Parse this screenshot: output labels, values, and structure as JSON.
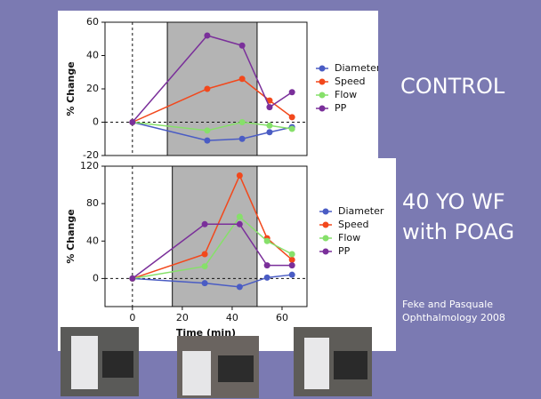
{
  "chart_data": [
    {
      "type": "line",
      "y_label": "% Change",
      "x": [
        0,
        30,
        44,
        55,
        64
      ],
      "xlim": [
        -11,
        70
      ],
      "ylim": [
        -20,
        60
      ],
      "yticks": [
        -20,
        0,
        20,
        40,
        60
      ],
      "shaded_interval": [
        14,
        50
      ],
      "legend": "right",
      "series": [
        {
          "name": "Diameter",
          "color": "#4a5cc4",
          "values": [
            0,
            -11,
            -10,
            -6,
            -3
          ]
        },
        {
          "name": "Speed",
          "color": "#f2481c",
          "values": [
            0,
            20,
            26,
            13,
            3
          ]
        },
        {
          "name": "Flow",
          "color": "#86e06a",
          "values": [
            0,
            -5,
            0,
            -2,
            -4
          ]
        },
        {
          "name": "PP",
          "color": "#7a2f9a",
          "values": [
            0,
            52,
            46,
            9,
            18
          ]
        }
      ]
    },
    {
      "type": "line",
      "y_label": "% Change",
      "x_label": "Time (min)",
      "x": [
        0,
        29,
        43,
        54,
        64
      ],
      "xlim": [
        -11,
        70
      ],
      "ylim": [
        -30,
        120
      ],
      "xticks": [
        0,
        20,
        40,
        60
      ],
      "yticks": [
        0,
        40,
        80,
        120
      ],
      "shaded_interval": [
        16,
        50
      ],
      "legend": "right",
      "series": [
        {
          "name": "Diameter",
          "color": "#4a5cc4",
          "values": [
            0,
            -5,
            -9,
            1,
            4
          ]
        },
        {
          "name": "Speed",
          "color": "#f2481c",
          "values": [
            0,
            26,
            110,
            43,
            20
          ]
        },
        {
          "name": "Flow",
          "color": "#86e06a",
          "values": [
            0,
            13,
            66,
            40,
            26
          ]
        },
        {
          "name": "PP",
          "color": "#7a2f9a",
          "values": [
            0,
            58,
            58,
            14,
            14
          ]
        }
      ]
    }
  ],
  "slide": {
    "control": "CONTROL",
    "case": [
      "40 YO WF",
      "with POAG"
    ],
    "citation": [
      "Feke and Pasquale",
      "Ophthalmology 2008"
    ]
  }
}
